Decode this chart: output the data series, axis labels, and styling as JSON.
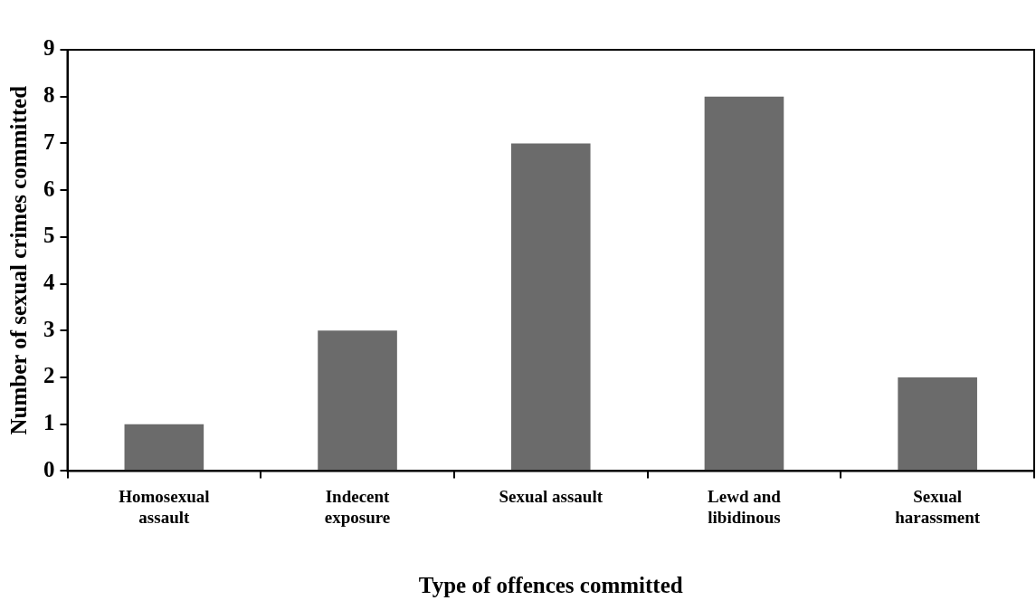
{
  "chart_data": {
    "type": "bar",
    "xlabel": "Type of offences committed",
    "ylabel": "Number of sexual crimes committed",
    "categories": [
      "Homosexual assault",
      "Indecent exposure",
      "Sexual assault",
      "Lewd and libidinous",
      "Sexual harassment"
    ],
    "values": [
      1,
      3,
      7,
      8,
      2
    ],
    "color": "#6b6b6b",
    "ylim": [
      0,
      9
    ],
    "yticks": [
      0,
      1,
      2,
      3,
      4,
      5,
      6,
      7,
      8,
      9
    ],
    "grid": false,
    "legend": false
  }
}
